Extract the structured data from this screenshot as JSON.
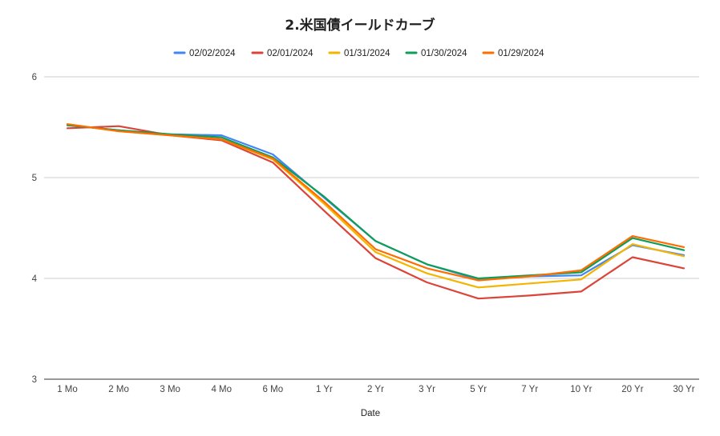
{
  "chart_data": {
    "type": "line",
    "title": "2.米国債イールドカーブ",
    "xlabel": "Date",
    "ylabel": "",
    "ylim": [
      3,
      6
    ],
    "yticks": [
      3,
      4,
      5,
      6
    ],
    "grid": true,
    "legend_position": "top",
    "categories": [
      "1 Mo",
      "2 Mo",
      "3 Mo",
      "4 Mo",
      "6 Mo",
      "1 Yr",
      "2 Yr",
      "3 Yr",
      "5 Yr",
      "7 Yr",
      "10 Yr",
      "20 Yr",
      "30 Yr"
    ],
    "series": [
      {
        "name": "02/02/2024",
        "color": "#4285f4",
        "values": [
          5.52,
          5.47,
          5.43,
          5.42,
          5.23,
          4.8,
          4.37,
          4.14,
          3.99,
          4.02,
          4.03,
          4.33,
          4.23
        ]
      },
      {
        "name": "02/01/2024",
        "color": "#db4437",
        "values": [
          5.49,
          5.51,
          5.42,
          5.37,
          5.15,
          4.67,
          4.2,
          3.96,
          3.8,
          3.83,
          3.87,
          4.21,
          4.1
        ]
      },
      {
        "name": "01/31/2024",
        "color": "#f4b400",
        "values": [
          5.53,
          5.46,
          5.42,
          5.38,
          5.18,
          4.74,
          4.26,
          4.05,
          3.91,
          3.95,
          3.99,
          4.34,
          4.22
        ]
      },
      {
        "name": "01/30/2024",
        "color": "#0f9d58",
        "values": [
          5.52,
          5.47,
          5.43,
          5.4,
          5.2,
          4.81,
          4.37,
          4.14,
          4.0,
          4.03,
          4.06,
          4.4,
          4.28
        ]
      },
      {
        "name": "01/29/2024",
        "color": "#ff6d01",
        "values": [
          5.53,
          5.46,
          5.42,
          5.38,
          5.19,
          4.76,
          4.29,
          4.1,
          3.98,
          4.02,
          4.08,
          4.42,
          4.31
        ]
      }
    ]
  }
}
